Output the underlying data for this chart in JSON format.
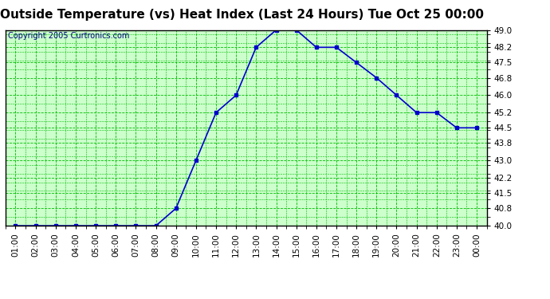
{
  "title": "Outside Temperature (vs) Heat Index (Last 24 Hours) Tue Oct 25 00:00",
  "copyright": "Copyright 2005 Curtronics.com",
  "x_labels": [
    "01:00",
    "02:00",
    "03:00",
    "04:00",
    "05:00",
    "06:00",
    "07:00",
    "08:00",
    "09:00",
    "10:00",
    "11:00",
    "12:00",
    "13:00",
    "14:00",
    "15:00",
    "16:00",
    "17:00",
    "18:00",
    "19:00",
    "20:00",
    "21:00",
    "22:00",
    "23:00",
    "00:00"
  ],
  "y_values": [
    40.0,
    40.0,
    40.0,
    40.0,
    40.0,
    40.0,
    40.0,
    40.0,
    40.8,
    43.0,
    45.2,
    46.0,
    48.2,
    49.0,
    49.0,
    48.2,
    48.2,
    47.5,
    46.8,
    46.0,
    45.2,
    45.2,
    44.5,
    44.5
  ],
  "line_color": "#0000cc",
  "marker": "s",
  "marker_size": 2.5,
  "bg_color": "#ccffcc",
  "grid_color": "#00bb00",
  "ylim_min": 40.0,
  "ylim_max": 49.0,
  "yticks": [
    40.0,
    40.8,
    41.5,
    42.2,
    43.0,
    43.8,
    44.5,
    45.2,
    46.0,
    46.8,
    47.5,
    48.2,
    49.0
  ],
  "title_fontsize": 11,
  "copyright_fontsize": 7,
  "tick_fontsize": 7.5,
  "fig_bg": "#ffffff",
  "border_color": "#000000"
}
